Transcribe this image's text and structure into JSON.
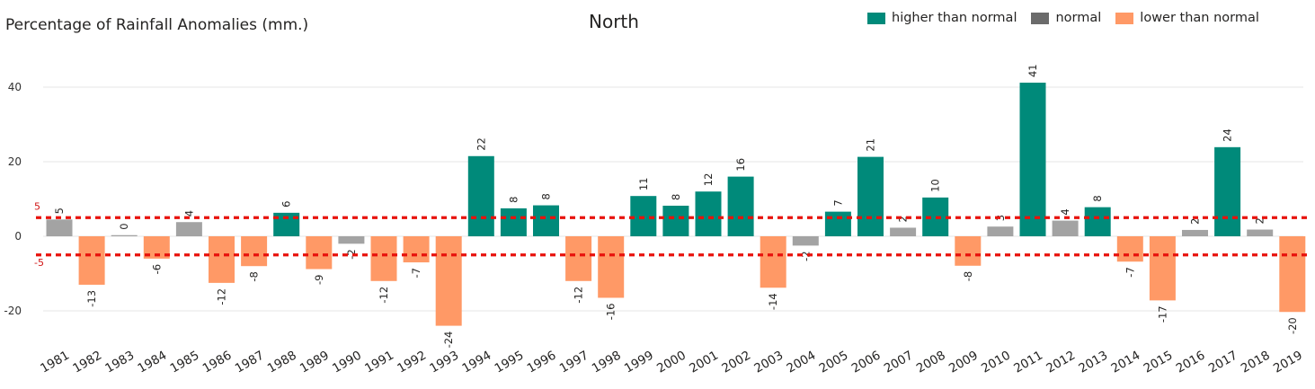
{
  "header": {
    "left_title": "Percentage of Rainfall Anomalies (mm.)",
    "center_title": "North"
  },
  "legend": [
    {
      "label": "higher than normal",
      "color": "#008a7a"
    },
    {
      "label": "normal",
      "color": "#6b6b6b"
    },
    {
      "label": "lower than normal",
      "color": "#ff9966"
    }
  ],
  "chart_data": {
    "type": "bar",
    "title": "North",
    "ylabel": "Percentage of Rainfall Anomalies (mm.)",
    "xlabel": "",
    "ylim": [
      -28,
      50
    ],
    "yticks": [
      -20,
      0,
      20,
      40
    ],
    "grid": true,
    "legend_position": "top-right",
    "colors": {
      "higher": "#008a7a",
      "normal": "#a3a3a3",
      "lower": "#ff9966"
    },
    "reference_lines": [
      {
        "value": 5,
        "label": "5",
        "color": "#e8120c"
      },
      {
        "value": -5,
        "label": "-5",
        "color": "#e8120c"
      }
    ],
    "categories": [
      "1981",
      "1982",
      "1983",
      "1984",
      "1985",
      "1986",
      "1987",
      "1988",
      "1989",
      "1990",
      "1991",
      "1992",
      "1993",
      "1994",
      "1995",
      "1996",
      "1997",
      "1998",
      "1999",
      "2000",
      "2001",
      "2002",
      "2003",
      "2004",
      "2005",
      "2006",
      "2007",
      "2008",
      "2009",
      "2010",
      "2011",
      "2012",
      "2013",
      "2014",
      "2015",
      "2016",
      "2017",
      "2018",
      "2019"
    ],
    "values": [
      4.5,
      -13,
      0.3,
      -6,
      3.8,
      -12.5,
      -8,
      6.3,
      -8.8,
      -2,
      -12,
      -7,
      -24,
      21.5,
      7.5,
      8.3,
      -12,
      -16.5,
      10.8,
      8.2,
      12,
      16,
      -13.8,
      -2.5,
      6.6,
      21.3,
      2.3,
      10.4,
      -7.9,
      2.6,
      41.2,
      4.2,
      7.8,
      -6.8,
      -17.2,
      1.7,
      23.9,
      1.8,
      -20.3
    ],
    "labels": [
      "5",
      "-13",
      "0",
      "-6",
      "4",
      "-12",
      "-8",
      "6",
      "-9",
      "-2",
      "-12",
      "-7",
      "-24",
      "22",
      "8",
      "8",
      "-12",
      "-16",
      "11",
      "8",
      "12",
      "16",
      "-14",
      "-2",
      "7",
      "21",
      "2",
      "10",
      "-8",
      "3",
      "41",
      "4",
      "8",
      "-7",
      "-17",
      "2",
      "24",
      "2",
      "-20"
    ],
    "classes": [
      "normal",
      "lower",
      "normal",
      "lower",
      "normal",
      "lower",
      "lower",
      "higher",
      "lower",
      "normal",
      "lower",
      "lower",
      "lower",
      "higher",
      "higher",
      "higher",
      "lower",
      "lower",
      "higher",
      "higher",
      "higher",
      "higher",
      "lower",
      "normal",
      "higher",
      "higher",
      "normal",
      "higher",
      "lower",
      "normal",
      "higher",
      "normal",
      "higher",
      "lower",
      "lower",
      "normal",
      "higher",
      "normal",
      "lower"
    ]
  }
}
